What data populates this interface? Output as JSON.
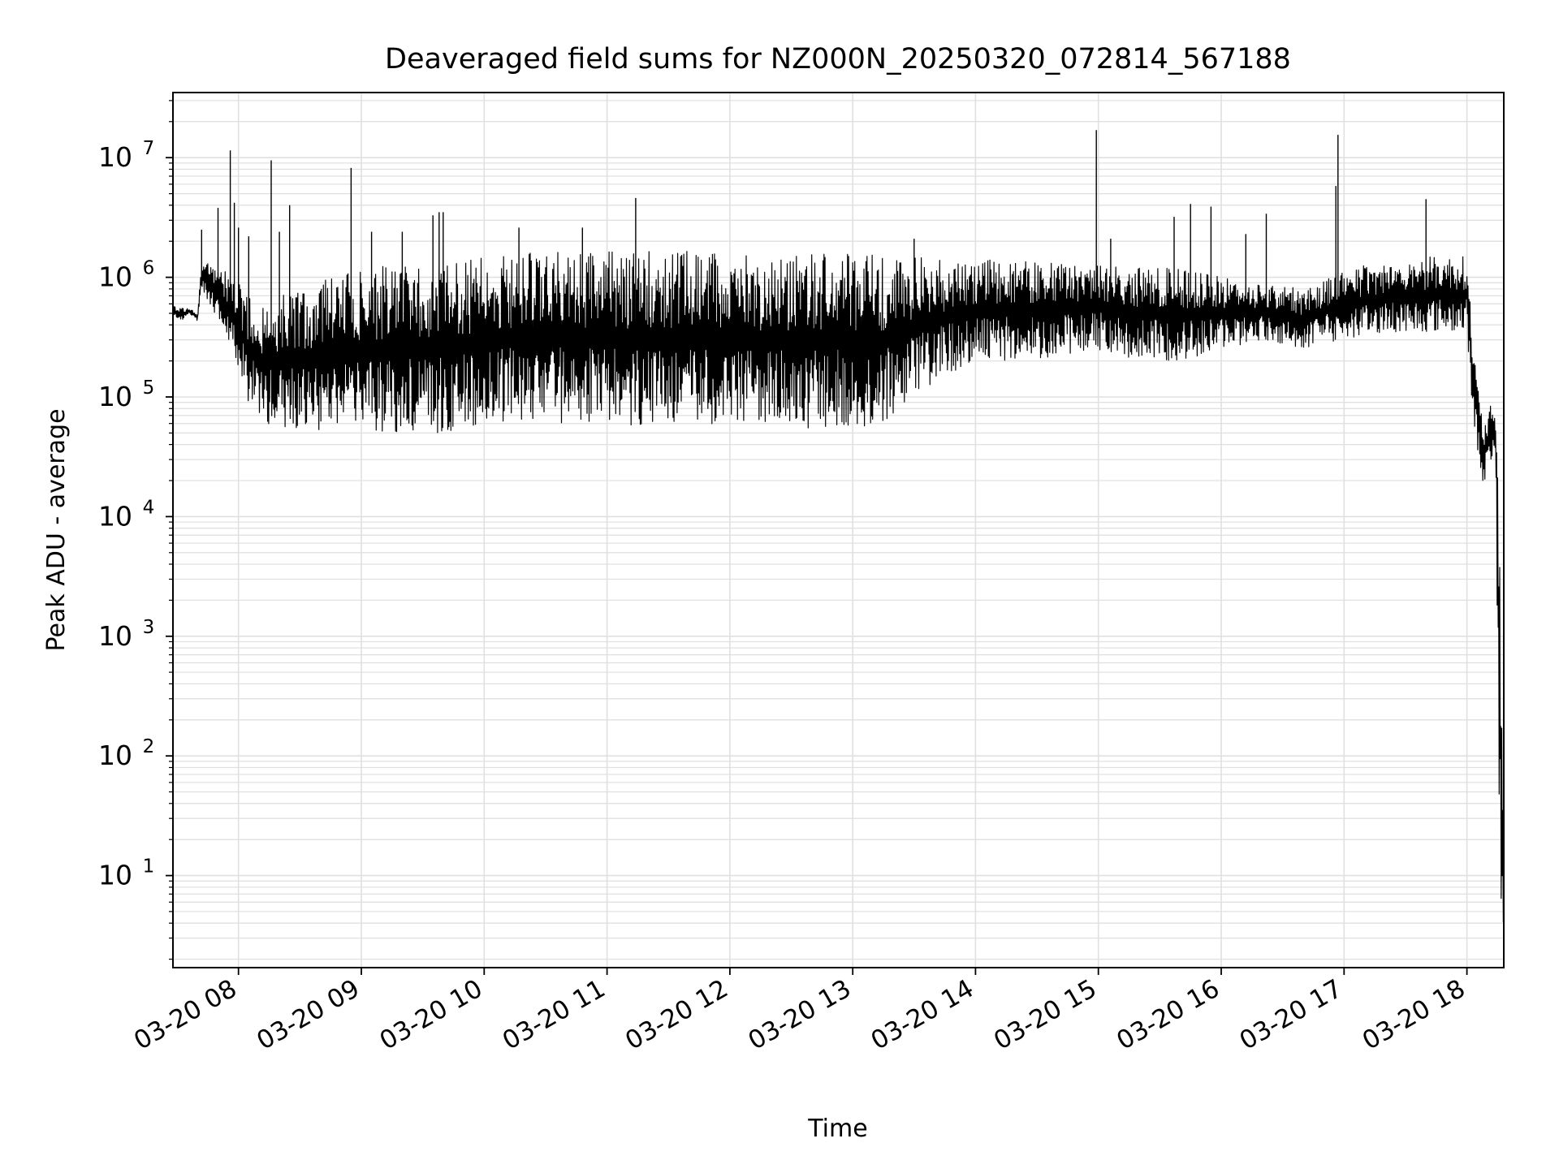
{
  "chart_data": {
    "type": "line",
    "title": "Deaveraged field sums for NZ000N_20250320_072814_567188",
    "xlabel": "Time",
    "ylabel": "Peak ADU - average",
    "yscale": "log",
    "xlim": [
      "2025-03-20 07:28",
      "2025-03-20 18:18"
    ],
    "ylim": [
      1.7,
      35000000
    ],
    "grid": true,
    "line_color": "#000000",
    "grid_color": "#e0e0e0",
    "x_ticks": [
      "03-20 08",
      "03-20 09",
      "03-20 10",
      "03-20 11",
      "03-20 12",
      "03-20 13",
      "03-20 14",
      "03-20 15",
      "03-20 16",
      "03-20 17",
      "03-20 18"
    ],
    "y_ticks": [
      {
        "value": 10,
        "base": "10",
        "exp": "1"
      },
      {
        "value": 100,
        "base": "10",
        "exp": "2"
      },
      {
        "value": 1000,
        "base": "10",
        "exp": "3"
      },
      {
        "value": 10000,
        "base": "10",
        "exp": "4"
      },
      {
        "value": 100000,
        "base": "10",
        "exp": "5"
      },
      {
        "value": 1000000,
        "base": "10",
        "exp": "6"
      },
      {
        "value": 10000000,
        "base": "10",
        "exp": "7"
      }
    ],
    "series": [
      {
        "x": [
          "2025-03-20 07:28",
          "2025-03-20 07:32",
          "2025-03-20 07:36",
          "2025-03-20 07:40",
          "2025-03-20 07:42",
          "2025-03-20 07:44",
          "2025-03-20 07:48",
          "2025-03-20 07:52",
          "2025-03-20 07:56",
          "2025-03-20 08:00",
          "2025-03-20 08:06",
          "2025-03-20 08:12",
          "2025-03-20 08:20",
          "2025-03-20 08:30",
          "2025-03-20 08:45",
          "2025-03-20 09:00",
          "2025-03-20 09:20",
          "2025-03-20 09:40",
          "2025-03-20 10:00",
          "2025-03-20 10:10",
          "2025-03-20 10:30",
          "2025-03-20 11:00",
          "2025-03-20 11:30",
          "2025-03-20 12:00",
          "2025-03-20 12:30",
          "2025-03-20 13:00",
          "2025-03-20 13:15",
          "2025-03-20 13:30",
          "2025-03-20 13:45",
          "2025-03-20 14:00",
          "2025-03-20 14:20",
          "2025-03-20 14:40",
          "2025-03-20 15:00",
          "2025-03-20 15:20",
          "2025-03-20 15:40",
          "2025-03-20 16:00",
          "2025-03-20 16:20",
          "2025-03-20 16:40",
          "2025-03-20 17:00",
          "2025-03-20 17:20",
          "2025-03-20 17:40",
          "2025-03-20 18:00",
          "2025-03-20 18:03",
          "2025-03-20 18:06",
          "2025-03-20 18:08",
          "2025-03-20 18:10",
          "2025-03-20 18:12",
          "2025-03-20 18:14",
          "2025-03-20 18:16",
          "2025-03-20 18:18"
        ],
        "low": [
          450000,
          420000,
          500000,
          430000,
          800000,
          700000,
          500000,
          350000,
          250000,
          150000,
          80000,
          60000,
          55000,
          55000,
          52000,
          50000,
          50000,
          50000,
          52000,
          60000,
          60000,
          55000,
          55000,
          55000,
          55000,
          55000,
          60000,
          100000,
          150000,
          200000,
          200000,
          220000,
          250000,
          200000,
          200000,
          250000,
          300000,
          250000,
          300000,
          350000,
          350000,
          350000,
          60000,
          30000,
          18000,
          25000,
          30000,
          30000,
          4,
          4
        ],
        "high": [
          600000,
          550000,
          550000,
          500000,
          1300000,
          1300000,
          1400000,
          1200000,
          1000000,
          900000,
          700000,
          600000,
          800000,
          800000,
          1000000,
          1200000,
          1300000,
          1400000,
          1500000,
          1600000,
          1700000,
          1700000,
          1700000,
          1650000,
          1600000,
          1600000,
          1500000,
          1500000,
          1400000,
          1400000,
          1400000,
          1300000,
          1300000,
          1200000,
          1200000,
          1000000,
          900000,
          800000,
          1200000,
          1300000,
          1500000,
          1500000,
          300000,
          100000,
          60000,
          70000,
          90000,
          60000,
          30000,
          4
        ]
      }
    ],
    "spikes": [
      {
        "x": "2025-03-20 07:42",
        "y": 2500000
      },
      {
        "x": "2025-03-20 07:50",
        "y": 3800000
      },
      {
        "x": "2025-03-20 07:56",
        "y": 11500000
      },
      {
        "x": "2025-03-20 07:58",
        "y": 4200000
      },
      {
        "x": "2025-03-20 08:00",
        "y": 2600000
      },
      {
        "x": "2025-03-20 08:05",
        "y": 2200000
      },
      {
        "x": "2025-03-20 08:16",
        "y": 9500000
      },
      {
        "x": "2025-03-20 08:20",
        "y": 2400000
      },
      {
        "x": "2025-03-20 08:25",
        "y": 4000000
      },
      {
        "x": "2025-03-20 08:55",
        "y": 8200000
      },
      {
        "x": "2025-03-20 09:05",
        "y": 2400000
      },
      {
        "x": "2025-03-20 09:20",
        "y": 2400000
      },
      {
        "x": "2025-03-20 09:35",
        "y": 3300000
      },
      {
        "x": "2025-03-20 09:38",
        "y": 3500000
      },
      {
        "x": "2025-03-20 09:40",
        "y": 3500000
      },
      {
        "x": "2025-03-20 10:17",
        "y": 2600000
      },
      {
        "x": "2025-03-20 10:48",
        "y": 2600000
      },
      {
        "x": "2025-03-20 11:14",
        "y": 4600000
      },
      {
        "x": "2025-03-20 13:30",
        "y": 2100000
      },
      {
        "x": "2025-03-20 14:59",
        "y": 17000000
      },
      {
        "x": "2025-03-20 15:06",
        "y": 2100000
      },
      {
        "x": "2025-03-20 15:37",
        "y": 3200000
      },
      {
        "x": "2025-03-20 15:45",
        "y": 4100000
      },
      {
        "x": "2025-03-20 15:55",
        "y": 3900000
      },
      {
        "x": "2025-03-20 16:12",
        "y": 2300000
      },
      {
        "x": "2025-03-20 16:22",
        "y": 3400000
      },
      {
        "x": "2025-03-20 16:57",
        "y": 15500000
      },
      {
        "x": "2025-03-20 16:56",
        "y": 5800000
      },
      {
        "x": "2025-03-20 17:40",
        "y": 4500000
      }
    ]
  }
}
